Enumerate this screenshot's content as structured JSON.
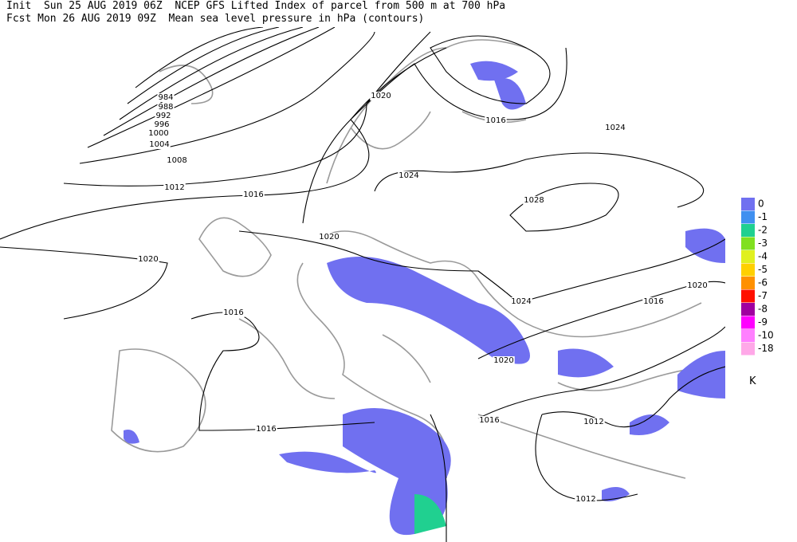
{
  "header": {
    "init": "Init  Sun 25 AUG 2019 06Z  NCEP GFS Lifted Index of parcel from 500 m at 700 hPa",
    "forecast": "Fcst Mon 26 AUG 2019 09Z  Mean sea level pressure in hPa (contours)"
  },
  "contours": [
    984,
    988,
    992,
    996,
    1000,
    1004,
    1008,
    1012,
    1016,
    1020,
    1016,
    1024,
    1024,
    1028,
    1020,
    1020,
    1016,
    1024,
    1016,
    1020,
    1020,
    1016,
    1012,
    1016,
    1012
  ],
  "legend": {
    "unit": "K",
    "items": [
      {
        "label": 0,
        "color": "#7070f0"
      },
      {
        "label": -1,
        "color": "#4090f0"
      },
      {
        "label": -2,
        "color": "#20d090"
      },
      {
        "label": -3,
        "color": "#80e020"
      },
      {
        "label": -4,
        "color": "#e0f020"
      },
      {
        "label": -5,
        "color": "#ffd000"
      },
      {
        "label": -6,
        "color": "#ff9000"
      },
      {
        "label": -7,
        "color": "#ff1000"
      },
      {
        "label": -8,
        "color": "#a000a0"
      },
      {
        "label": -9,
        "color": "#ff00ff"
      },
      {
        "label": -10,
        "color": "#ff80ff"
      },
      {
        "label": -18,
        "color": "#ffa8e8"
      }
    ]
  }
}
